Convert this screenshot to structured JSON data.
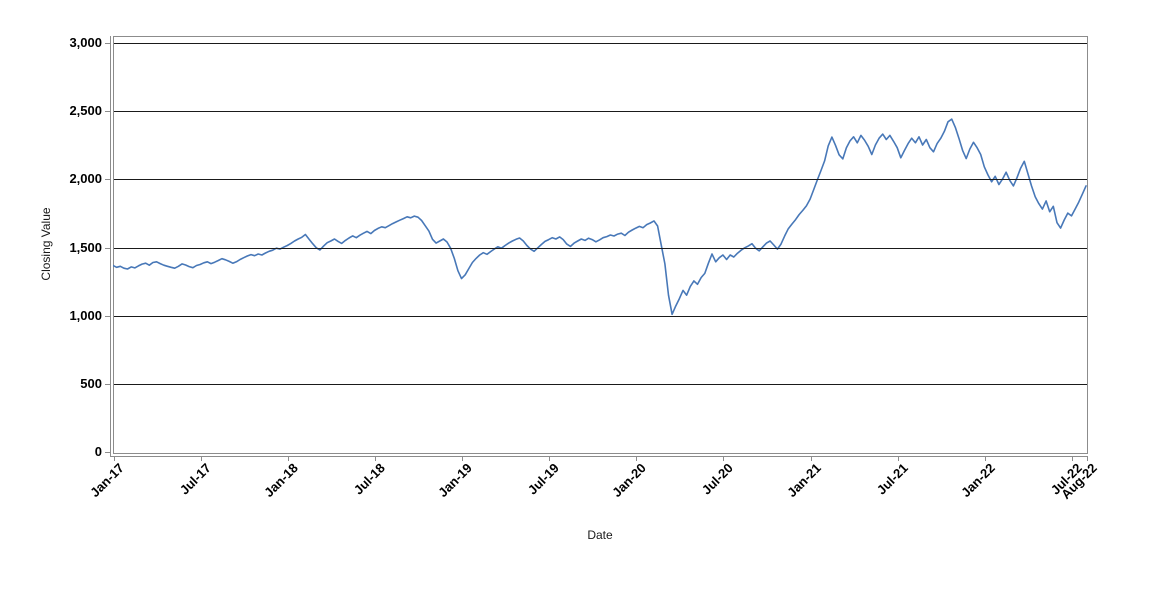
{
  "chart": {
    "title": "",
    "ylabel": "Closing Value",
    "xlabel": "Date",
    "colors": {
      "line": "#4878b8",
      "gridline": "#1a1a1a",
      "plot_border": "#8c8c8c",
      "axis": "#8c8c8c",
      "tick_text": "#000000",
      "background": "#ffffff"
    },
    "y_ticks": [
      {
        "label": "0",
        "value": 0
      },
      {
        "label": "500",
        "value": 500
      },
      {
        "label": "1,000",
        "value": 1000
      },
      {
        "label": "1,500",
        "value": 1500
      },
      {
        "label": "2,000",
        "value": 2000
      },
      {
        "label": "2,500",
        "value": 2500
      },
      {
        "label": "3,000",
        "value": 3000
      }
    ],
    "x_ticks": [
      {
        "label": "Jan-17",
        "month": 0
      },
      {
        "label": "Jul-17",
        "month": 6
      },
      {
        "label": "Jan-18",
        "month": 12
      },
      {
        "label": "Jul-18",
        "month": 18
      },
      {
        "label": "Jan-19",
        "month": 24
      },
      {
        "label": "Jul-19",
        "month": 30
      },
      {
        "label": "Jan-20",
        "month": 36
      },
      {
        "label": "Jul-20",
        "month": 42
      },
      {
        "label": "Jan-21",
        "month": 48
      },
      {
        "label": "Jul-21",
        "month": 54
      },
      {
        "label": "Jan-22",
        "month": 60
      },
      {
        "label": "Jul-22",
        "month": 66
      },
      {
        "label": "Aug-22",
        "month": 67
      }
    ]
  },
  "chart_data": {
    "type": "line",
    "title": "",
    "xlabel": "Date",
    "ylabel": "Closing Value",
    "ylim": [
      0,
      3000
    ],
    "x_start": "Jan-17",
    "x_end": "Aug-22",
    "x_total_months": 67,
    "points_per_month": 4,
    "grid": "horizontal",
    "legend": "none",
    "series": [
      {
        "name": "Closing Value",
        "values": [
          1368,
          1355,
          1362,
          1348,
          1342,
          1358,
          1350,
          1365,
          1378,
          1385,
          1370,
          1390,
          1395,
          1382,
          1370,
          1362,
          1355,
          1348,
          1362,
          1380,
          1372,
          1360,
          1352,
          1368,
          1375,
          1388,
          1395,
          1382,
          1392,
          1405,
          1418,
          1410,
          1398,
          1385,
          1395,
          1412,
          1425,
          1438,
          1448,
          1440,
          1452,
          1445,
          1460,
          1472,
          1480,
          1495,
          1488,
          1502,
          1515,
          1530,
          1548,
          1562,
          1575,
          1595,
          1560,
          1528,
          1498,
          1482,
          1510,
          1535,
          1548,
          1562,
          1545,
          1530,
          1552,
          1570,
          1585,
          1572,
          1590,
          1605,
          1618,
          1602,
          1625,
          1640,
          1652,
          1645,
          1660,
          1675,
          1688,
          1700,
          1712,
          1725,
          1718,
          1730,
          1722,
          1698,
          1660,
          1620,
          1560,
          1532,
          1548,
          1562,
          1540,
          1495,
          1420,
          1330,
          1272,
          1300,
          1345,
          1390,
          1420,
          1445,
          1462,
          1450,
          1470,
          1488,
          1505,
          1495,
          1515,
          1532,
          1548,
          1560,
          1570,
          1548,
          1515,
          1488,
          1472,
          1498,
          1522,
          1545,
          1558,
          1572,
          1562,
          1578,
          1558,
          1525,
          1508,
          1532,
          1548,
          1562,
          1552,
          1568,
          1558,
          1542,
          1556,
          1572,
          1580,
          1592,
          1584,
          1598,
          1605,
          1588,
          1612,
          1628,
          1642,
          1655,
          1645,
          1668,
          1680,
          1695,
          1658,
          1520,
          1380,
          1150,
          1010,
          1070,
          1125,
          1185,
          1150,
          1215,
          1255,
          1230,
          1280,
          1310,
          1385,
          1452,
          1395,
          1425,
          1445,
          1412,
          1445,
          1430,
          1458,
          1480,
          1498,
          1512,
          1528,
          1495,
          1475,
          1505,
          1532,
          1548,
          1518,
          1488,
          1525,
          1585,
          1638,
          1672,
          1705,
          1742,
          1772,
          1805,
          1855,
          1925,
          1995,
          2065,
          2135,
          2245,
          2310,
          2250,
          2180,
          2150,
          2232,
          2282,
          2312,
          2268,
          2322,
          2288,
          2242,
          2182,
          2252,
          2302,
          2332,
          2292,
          2322,
          2278,
          2232,
          2158,
          2212,
          2262,
          2302,
          2268,
          2312,
          2252,
          2292,
          2232,
          2202,
          2262,
          2302,
          2352,
          2422,
          2442,
          2382,
          2302,
          2212,
          2152,
          2222,
          2272,
          2232,
          2182,
          2092,
          2032,
          1982,
          2022,
          1962,
          2002,
          2052,
          1992,
          1952,
          2012,
          2082,
          2132,
          2042,
          1952,
          1872,
          1822,
          1782,
          1842,
          1762,
          1802,
          1682,
          1642,
          1702,
          1752,
          1732,
          1782,
          1832,
          1892,
          1952
        ]
      }
    ]
  }
}
